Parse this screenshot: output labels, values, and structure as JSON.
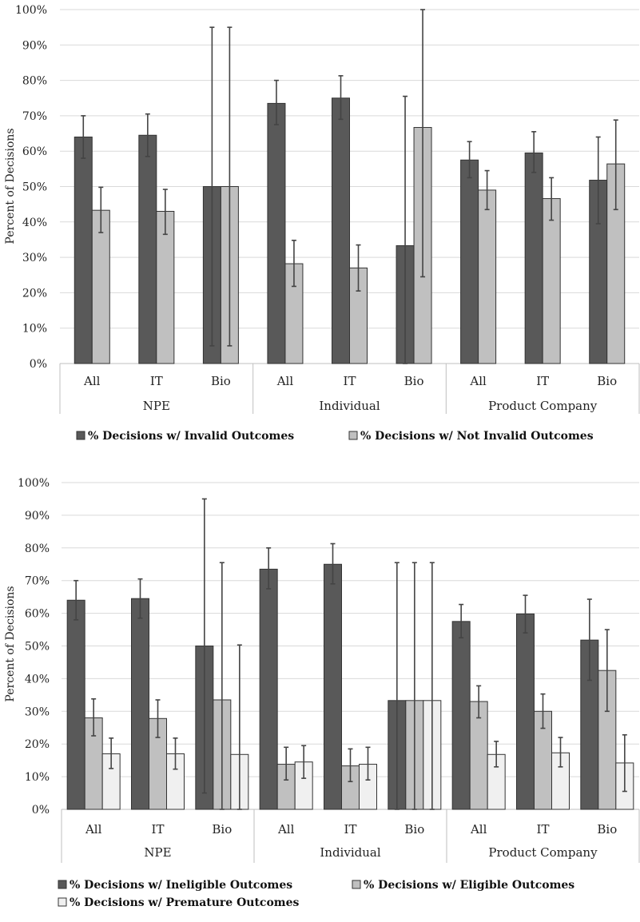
{
  "colors": {
    "series_dark": "#595959",
    "series_mid": "#c0c0c0",
    "series_light": "#f0f0f0",
    "bar_stroke": "#333333",
    "grid": "#d9d9d9"
  },
  "chart_data": [
    {
      "type": "bar",
      "ylabel": "Percent of Decisions",
      "ylim": [
        0,
        100
      ],
      "yticks": [
        "0%",
        "10%",
        "20%",
        "30%",
        "40%",
        "50%",
        "60%",
        "70%",
        "80%",
        "90%",
        "100%"
      ],
      "grid": true,
      "legend_position": "bottom",
      "groups": [
        {
          "label": "NPE",
          "categories": [
            "All",
            "IT",
            "Bio"
          ]
        },
        {
          "label": "Individual",
          "categories": [
            "All",
            "IT",
            "Bio"
          ]
        },
        {
          "label": "Product Company",
          "categories": [
            "All",
            "IT",
            "Bio"
          ]
        }
      ],
      "series": [
        {
          "name": "% Decisions w/ Invalid Outcomes",
          "color": "#595959",
          "values": [
            64,
            64.5,
            50,
            73.5,
            75,
            33.3,
            57.5,
            59.5,
            51.8
          ],
          "err_low": [
            58,
            58.5,
            5,
            67.5,
            69,
            0,
            52.5,
            54,
            39.5
          ],
          "err_high": [
            70,
            70.5,
            95,
            80,
            81.3,
            75.5,
            62.7,
            65.5,
            64
          ]
        },
        {
          "name": "% Decisions w/ Not Invalid Outcomes",
          "color": "#c0c0c0",
          "values": [
            43.3,
            43,
            50,
            28.2,
            27,
            66.7,
            49,
            46.6,
            56.4
          ],
          "err_low": [
            37,
            36.5,
            5,
            21.8,
            20.5,
            24.5,
            43.5,
            40.5,
            43.5
          ],
          "err_high": [
            49.8,
            49.2,
            95,
            34.8,
            33.5,
            100,
            54.5,
            52.5,
            68.8
          ]
        }
      ]
    },
    {
      "type": "bar",
      "ylabel": "Percent of Decisions",
      "ylim": [
        0,
        100
      ],
      "yticks": [
        "0%",
        "10%",
        "20%",
        "30%",
        "40%",
        "50%",
        "60%",
        "70%",
        "80%",
        "90%",
        "100%"
      ],
      "grid": true,
      "legend_position": "bottom",
      "groups": [
        {
          "label": "NPE",
          "categories": [
            "All",
            "IT",
            "Bio"
          ]
        },
        {
          "label": "Individual",
          "categories": [
            "All",
            "IT",
            "Bio"
          ]
        },
        {
          "label": "Product Company",
          "categories": [
            "All",
            "IT",
            "Bio"
          ]
        }
      ],
      "series": [
        {
          "name": "% Decisions w/ Ineligible Outcomes",
          "color": "#595959",
          "values": [
            64,
            64.5,
            50,
            73.5,
            75,
            33.3,
            57.5,
            59.8,
            51.8
          ],
          "err_low": [
            58,
            58.5,
            5,
            67.5,
            69,
            0,
            52.5,
            54,
            39.5
          ],
          "err_high": [
            70,
            70.5,
            95,
            80,
            81.3,
            75.5,
            62.7,
            65.5,
            64.3
          ]
        },
        {
          "name": "% Decisions w/ Eligible Outcomes",
          "color": "#c0c0c0",
          "values": [
            28,
            27.8,
            33.5,
            13.8,
            13.3,
            33.3,
            33,
            30,
            42.5
          ],
          "err_low": [
            22.5,
            22,
            0,
            9,
            8.5,
            0,
            28,
            24.8,
            30
          ],
          "err_high": [
            33.8,
            33.5,
            75.5,
            19,
            18.5,
            75.5,
            37.8,
            35.3,
            55
          ]
        },
        {
          "name": "% Decisions w/ Premature Outcomes",
          "color": "#f0f0f0",
          "values": [
            17,
            17,
            16.8,
            14.5,
            13.8,
            33.3,
            16.8,
            17.3,
            14.2
          ],
          "err_low": [
            12.5,
            12.3,
            0,
            9.5,
            9,
            0,
            13,
            13,
            5.5
          ],
          "err_high": [
            21.8,
            21.8,
            50.3,
            19.5,
            19,
            75.5,
            20.8,
            22,
            22.8
          ]
        }
      ]
    }
  ]
}
